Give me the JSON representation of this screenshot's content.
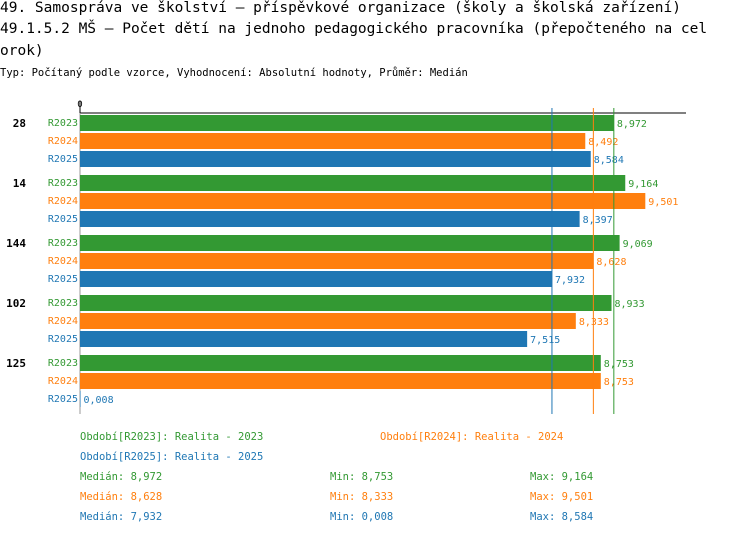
{
  "header": {
    "title_line1": "49. Samospráva ve školství – příspěvkové organizace (školy a školská zařízení)",
    "title_line2": "49.1.5.2 MŠ – Počet dětí na jednoho pedagogického pracovníka (přepočteného na cel",
    "title_line3": "orok)",
    "subtitle": "Typ: Počítaný podle vzorce, Vyhodnocení: Absolutní hodnoty, Průměr: Medián"
  },
  "colors": {
    "R2023": "#339933",
    "R2024": "#ff7f0e",
    "R2025": "#1f77b4"
  },
  "chart_data": {
    "type": "bar",
    "orientation": "horizontal",
    "axis_zero_label": "0",
    "xlim": [
      0,
      10
    ],
    "categories": [
      "28",
      "14",
      "144",
      "102",
      "125"
    ],
    "series": [
      {
        "name": "R2023",
        "values": [
          8.972,
          9.164,
          9.069,
          8.933,
          8.753
        ],
        "labels": [
          "8,972",
          "9,164",
          "9,069",
          "8,933",
          "8,753"
        ]
      },
      {
        "name": "R2024",
        "values": [
          8.492,
          9.501,
          8.628,
          8.333,
          8.753
        ],
        "labels": [
          "8,492",
          "9,501",
          "8,628",
          "8,333",
          "8,753"
        ]
      },
      {
        "name": "R2025",
        "values": [
          8.584,
          8.397,
          7.932,
          7.515,
          0.008
        ],
        "labels": [
          "8,584",
          "8,397",
          "7,932",
          "7,515",
          "0,008"
        ]
      }
    ],
    "median_lines": [
      {
        "series": "R2023",
        "value": 8.972
      },
      {
        "series": "R2024",
        "value": 8.628
      },
      {
        "series": "R2025",
        "value": 7.932
      }
    ]
  },
  "legend": {
    "items": [
      {
        "series": "R2023",
        "text": "Období[R2023]: Realita - 2023"
      },
      {
        "series": "R2024",
        "text": "Období[R2024]: Realita - 2024"
      },
      {
        "series": "R2025",
        "text": "Období[R2025]: Realita - 2025"
      }
    ]
  },
  "stats": [
    {
      "series": "R2023",
      "median": "Medián: 8,972",
      "min": "Min: 8,753",
      "max": "Max: 9,164"
    },
    {
      "series": "R2024",
      "median": "Medián: 8,628",
      "min": "Min: 8,333",
      "max": "Max: 9,501"
    },
    {
      "series": "R2025",
      "median": "Medián: 7,932",
      "min": "Min: 0,008",
      "max": "Max: 8,584"
    }
  ]
}
